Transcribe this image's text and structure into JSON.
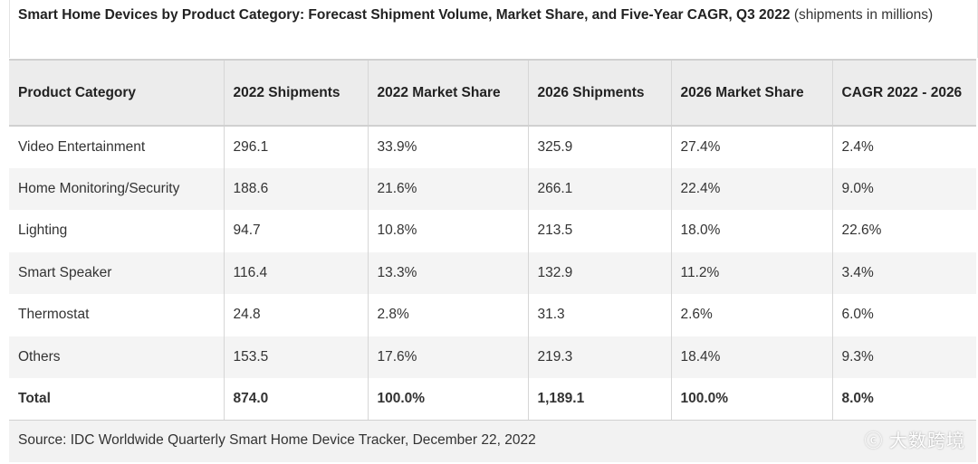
{
  "title": {
    "main": "Smart Home Devices by Product Category: Forecast Shipment Volume, Market Share, and Five-Year CAGR, Q3 2022",
    "sub": "(shipments in millions)"
  },
  "table": {
    "headers": [
      "Product Category",
      "2022 Shipments",
      "2022 Market Share",
      "2026 Shipments",
      "2026 Market Share",
      "CAGR 2022 - 2026"
    ],
    "rows": [
      [
        "Video Entertainment",
        "296.1",
        "33.9%",
        "325.9",
        "27.4%",
        "2.4%"
      ],
      [
        "Home Monitoring/Security",
        "188.6",
        "21.6%",
        "266.1",
        "22.4%",
        "9.0%"
      ],
      [
        "Lighting",
        "94.7",
        "10.8%",
        "213.5",
        "18.0%",
        "22.6%"
      ],
      [
        "Smart Speaker",
        "116.4",
        "13.3%",
        "132.9",
        "11.2%",
        "3.4%"
      ],
      [
        "Thermostat",
        "24.8",
        "2.8%",
        "31.3",
        "2.6%",
        "6.0%"
      ],
      [
        "Others",
        "153.5",
        "17.6%",
        "219.3",
        "18.4%",
        "9.3%"
      ]
    ],
    "total": [
      "Total",
      "874.0",
      "100.0%",
      "1,189.1",
      "100.0%",
      "8.0%"
    ]
  },
  "source": "Source: IDC Worldwide Quarterly Smart Home Device Tracker, December 22, 2022",
  "watermark": "大数跨境"
}
